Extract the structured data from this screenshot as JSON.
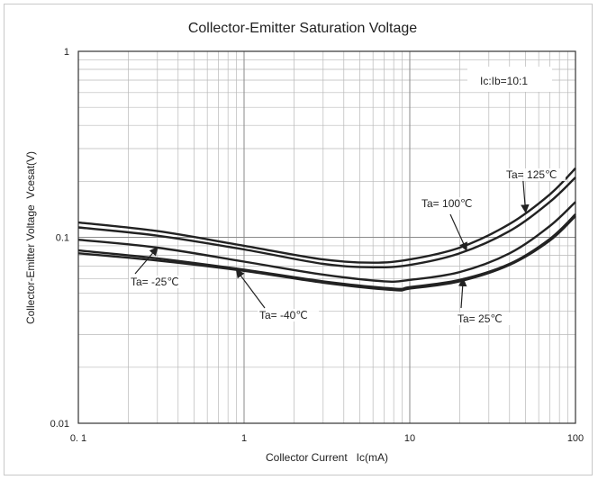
{
  "chart_data": {
    "type": "line",
    "title": "Collector-Emitter Saturation Voltage",
    "xlabel": "Collector Current   Ic(mA)",
    "ylabel": "Collector-Emitter Voltage  Vcesat(V)",
    "x_scale": "log",
    "y_scale": "log",
    "xlim": [
      0.1,
      100
    ],
    "ylim": [
      0.01,
      1
    ],
    "x_ticks": [
      {
        "value": 0.1,
        "label": "0. 1"
      },
      {
        "value": 1,
        "label": "1"
      },
      {
        "value": 10,
        "label": "10"
      },
      {
        "value": 100,
        "label": "100"
      }
    ],
    "y_ticks": [
      {
        "value": 1,
        "label": "1"
      },
      {
        "value": 0.1,
        "label": "0.1"
      },
      {
        "value": 0.01,
        "label": "0.01"
      }
    ],
    "grid": true,
    "condition_box": "Ic:Ib=10:1",
    "series": [
      {
        "name": "Ta= 125℃",
        "x": [
          0.1,
          0.3,
          1,
          3,
          6,
          10,
          20,
          40,
          70,
          100
        ],
        "y": [
          0.12,
          0.108,
          0.09,
          0.076,
          0.073,
          0.076,
          0.088,
          0.118,
          0.17,
          0.235
        ]
      },
      {
        "name": "Ta= 100℃",
        "x": [
          0.1,
          0.3,
          1,
          3,
          6,
          10,
          20,
          40,
          70,
          100
        ],
        "y": [
          0.113,
          0.102,
          0.086,
          0.072,
          0.069,
          0.071,
          0.082,
          0.108,
          0.155,
          0.21
        ]
      },
      {
        "name": "Ta= -25℃",
        "x": [
          0.1,
          0.3,
          1,
          3,
          7,
          10,
          20,
          40,
          70,
          100
        ],
        "y": [
          0.097,
          0.088,
          0.074,
          0.063,
          0.058,
          0.059,
          0.065,
          0.082,
          0.115,
          0.155
        ]
      },
      {
        "name": "Ta= 25℃",
        "x": [
          0.1,
          0.3,
          1,
          3,
          8,
          10,
          20,
          40,
          70,
          100
        ],
        "y": [
          0.085,
          0.077,
          0.067,
          0.058,
          0.053,
          0.054,
          0.059,
          0.072,
          0.098,
          0.133
        ]
      },
      {
        "name": "Ta= -40℃",
        "x": [
          0.1,
          0.3,
          1,
          3,
          8,
          10,
          20,
          40,
          70,
          100
        ],
        "y": [
          0.082,
          0.075,
          0.066,
          0.057,
          0.052,
          0.053,
          0.058,
          0.071,
          0.096,
          0.13
        ]
      }
    ],
    "annotations": [
      {
        "text": "Ta= 125℃",
        "series": "Ta= 125℃"
      },
      {
        "text": "Ta= 100℃",
        "series": "Ta= 100℃"
      },
      {
        "text": "Ta= -25℃",
        "series": "Ta= -25℃"
      },
      {
        "text": "Ta= -40℃",
        "series": "Ta= -40℃"
      },
      {
        "text": "Ta= 25℃",
        "series": "Ta= 25℃"
      }
    ],
    "colors": {
      "line": "#222222",
      "grid": "#b8b8b8",
      "axis": "#333333"
    }
  }
}
